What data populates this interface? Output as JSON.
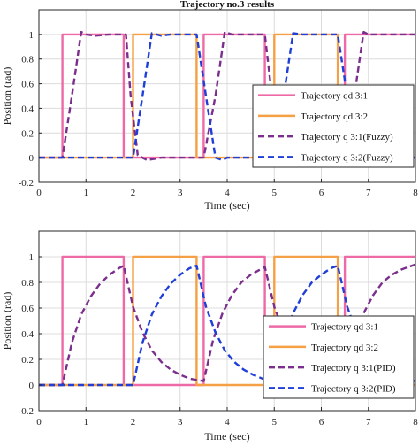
{
  "chart_data": [
    {
      "type": "line",
      "title": "Trajectory no.3 results",
      "xlabel": "Time (sec)",
      "ylabel": "Position (rad)",
      "xlim": [
        0,
        8
      ],
      "ylim": [
        -0.2,
        1.2
      ],
      "xticks": [
        "0",
        "1",
        "2",
        "3",
        "4",
        "5",
        "6",
        "7",
        "8"
      ],
      "yticks": [
        "-0.2",
        "0",
        "0.2",
        "0.4",
        "0.6",
        "0.8",
        "1"
      ],
      "grid": true,
      "legend_position": "right",
      "series": [
        {
          "name": "Trajectory qd 3:1",
          "color": "#ee6aa7",
          "dash": "solid",
          "x": [
            0,
            0.5,
            0.5,
            1.8,
            1.8,
            3.5,
            3.5,
            4.8,
            4.8,
            6.5,
            6.5,
            8
          ],
          "y": [
            0,
            0,
            1,
            1,
            0,
            0,
            1,
            1,
            0,
            0,
            1,
            1
          ]
        },
        {
          "name": "Trajectory qd 3:2",
          "color": "#f5a044",
          "dash": "solid",
          "x": [
            0,
            2,
            2,
            3.35,
            3.35,
            5,
            5,
            6.35,
            6.35,
            8
          ],
          "y": [
            0,
            0,
            1,
            1,
            0,
            0,
            1,
            1,
            0,
            0
          ]
        },
        {
          "name": "Trajectory q 3:1(Fuzzy)",
          "color": "#7b2f8c",
          "dash": "dashed",
          "x": [
            0,
            0.5,
            0.7,
            0.9,
            1.0,
            1.2,
            1.5,
            1.85,
            1.95,
            2.1,
            2.3,
            2.6,
            3.0,
            3.5,
            3.75,
            3.95,
            4.1,
            4.5,
            4.8,
            4.95,
            5.15,
            5.4,
            5.8,
            6.5,
            6.7,
            6.9,
            7.0,
            7.5,
            8.0
          ],
          "y": [
            0,
            0,
            0.5,
            1.02,
            1.0,
            0.99,
            1.0,
            1.0,
            0.5,
            0.02,
            -0.02,
            0.0,
            0.0,
            0.0,
            0.5,
            1.02,
            1.0,
            1.0,
            1.0,
            0.5,
            0.0,
            0.02,
            0.0,
            0.0,
            0.5,
            1.02,
            1.0,
            1.0,
            1.0
          ]
        },
        {
          "name": "Trajectory q 3:2(Fuzzy)",
          "color": "#1f3fd6",
          "dash": "dashed",
          "x": [
            0,
            2.0,
            2.2,
            2.4,
            2.6,
            2.8,
            3.0,
            3.35,
            3.55,
            3.75,
            3.9,
            4.0,
            4.5,
            5.0,
            5.2,
            5.4,
            5.6,
            6.0,
            6.35,
            6.55,
            6.75,
            6.9,
            7.2,
            7.6,
            8.0
          ],
          "y": [
            0,
            0,
            0.5,
            1.01,
            0.99,
            1.0,
            1.0,
            1.0,
            0.5,
            0.0,
            -0.02,
            0.0,
            0.0,
            0.0,
            0.5,
            1.01,
            1.0,
            1.0,
            1.0,
            0.5,
            0.0,
            -0.02,
            0.0,
            0.0,
            0.0
          ]
        }
      ]
    },
    {
      "type": "line",
      "title": "",
      "xlabel": "Time (sec)",
      "ylabel": "Position (rad)",
      "xlim": [
        0,
        8
      ],
      "ylim": [
        -0.2,
        1.2
      ],
      "xticks": [
        "0",
        "1",
        "2",
        "3",
        "4",
        "5",
        "6",
        "7",
        "8"
      ],
      "yticks": [
        "-0.2",
        "0",
        "0.2",
        "0.4",
        "0.6",
        "0.8",
        "1"
      ],
      "grid": true,
      "legend_position": "lower-right",
      "series": [
        {
          "name": "Trajectory qd 3:1",
          "color": "#ee6aa7",
          "dash": "solid",
          "x": [
            0,
            0.5,
            0.5,
            1.8,
            1.8,
            3.5,
            3.5,
            4.8,
            4.8,
            6.5,
            6.5,
            8
          ],
          "y": [
            0,
            0,
            1,
            1,
            0,
            0,
            1,
            1,
            0,
            0,
            1,
            1
          ]
        },
        {
          "name": "Trajectory qd 3:2",
          "color": "#f5a044",
          "dash": "solid",
          "x": [
            0,
            2,
            2,
            3.35,
            3.35,
            5,
            5,
            6.35,
            6.35,
            8
          ],
          "y": [
            0,
            0,
            1,
            1,
            0,
            0,
            1,
            1,
            0,
            0
          ]
        },
        {
          "name": "Trajectory q 3:1(PID)",
          "color": "#7b2f8c",
          "dash": "dashed",
          "x": [
            0,
            0.5,
            0.7,
            0.9,
            1.1,
            1.3,
            1.5,
            1.7,
            1.8,
            2.0,
            2.2,
            2.4,
            2.6,
            2.8,
            3.0,
            3.2,
            3.5,
            3.7,
            3.9,
            4.1,
            4.3,
            4.5,
            4.8,
            5.0,
            5.2,
            5.4,
            5.6,
            5.8,
            6.0,
            6.2,
            6.5,
            6.7,
            6.9,
            7.1,
            7.3,
            7.5,
            7.7,
            8.0
          ],
          "y": [
            0,
            0,
            0.33,
            0.55,
            0.69,
            0.79,
            0.86,
            0.91,
            0.93,
            0.61,
            0.41,
            0.27,
            0.18,
            0.12,
            0.08,
            0.05,
            0.03,
            0.35,
            0.56,
            0.7,
            0.8,
            0.86,
            0.92,
            0.61,
            0.41,
            0.27,
            0.18,
            0.12,
            0.08,
            0.05,
            0.03,
            0.35,
            0.56,
            0.7,
            0.8,
            0.86,
            0.9,
            0.94
          ]
        },
        {
          "name": "Trajectory q 3:2(PID)",
          "color": "#1f3fd6",
          "dash": "dashed",
          "x": [
            0,
            2.0,
            2.2,
            2.4,
            2.6,
            2.8,
            3.0,
            3.2,
            3.35,
            3.55,
            3.75,
            3.95,
            4.15,
            4.35,
            4.55,
            4.75,
            5.0,
            5.2,
            5.4,
            5.6,
            5.8,
            6.0,
            6.2,
            6.35,
            6.55,
            6.75,
            6.95,
            7.15,
            7.35,
            7.55,
            7.75,
            8.0
          ],
          "y": [
            0,
            0,
            0.33,
            0.55,
            0.69,
            0.79,
            0.86,
            0.91,
            0.93,
            0.61,
            0.41,
            0.27,
            0.18,
            0.12,
            0.08,
            0.05,
            0.03,
            0.35,
            0.56,
            0.7,
            0.8,
            0.86,
            0.91,
            0.93,
            0.61,
            0.41,
            0.27,
            0.18,
            0.12,
            0.08,
            0.05,
            0.03
          ]
        }
      ]
    }
  ]
}
